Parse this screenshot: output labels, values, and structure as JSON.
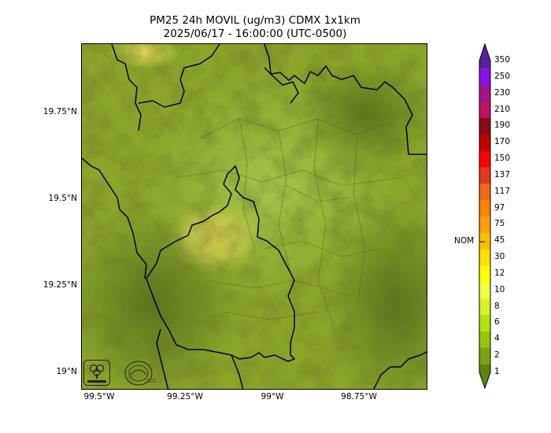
{
  "title": {
    "line1": "PM25 24h MOVIL (ug/m3) CDMX 1x1km",
    "line2": "2025/06/17 - 16:00:00 (UTC-0500)"
  },
  "map": {
    "lat_labels": [
      "19.75°N",
      "19.5°N",
      "19.25°N",
      "19°N"
    ],
    "lon_labels": [
      "99.5°W",
      "99.25°W",
      "99°W",
      "98.75°W"
    ],
    "base_color": "#8aa52a",
    "boundary_color": "#000000"
  },
  "logos": [
    {
      "name": "sedema-logo",
      "text": "SEDEMA"
    },
    {
      "name": "secretaria-logo",
      "text": "SECRETARÍA"
    }
  ],
  "colorbar": {
    "nom_label": "NOM",
    "nom_value": "45",
    "levels": [
      {
        "label": "350",
        "color": "#5b1fa0"
      },
      {
        "label": "250",
        "color": "#8b10ea"
      },
      {
        "label": "230",
        "color": "#a2138f"
      },
      {
        "label": "210",
        "color": "#bd1361"
      },
      {
        "label": "190",
        "color": "#8b0a14"
      },
      {
        "label": "170",
        "color": "#c00000"
      },
      {
        "label": "150",
        "color": "#ff0000"
      },
      {
        "label": "137",
        "color": "#e03a1a"
      },
      {
        "label": "117",
        "color": "#f26818"
      },
      {
        "label": "97",
        "color": "#ff8200"
      },
      {
        "label": "75",
        "color": "#ff9d0c"
      },
      {
        "label": "45",
        "color": "#ffbf00"
      },
      {
        "label": "30",
        "color": "#ffe000"
      },
      {
        "label": "12",
        "color": "#ffff00"
      },
      {
        "label": "10",
        "color": "#f3ff46"
      },
      {
        "label": "8",
        "color": "#d5f22a"
      },
      {
        "label": "6",
        "color": "#b1e40b"
      },
      {
        "label": "4",
        "color": "#96c70b"
      },
      {
        "label": "2",
        "color": "#7aa50e"
      },
      {
        "label": "1",
        "color": "#5e8311"
      }
    ]
  }
}
